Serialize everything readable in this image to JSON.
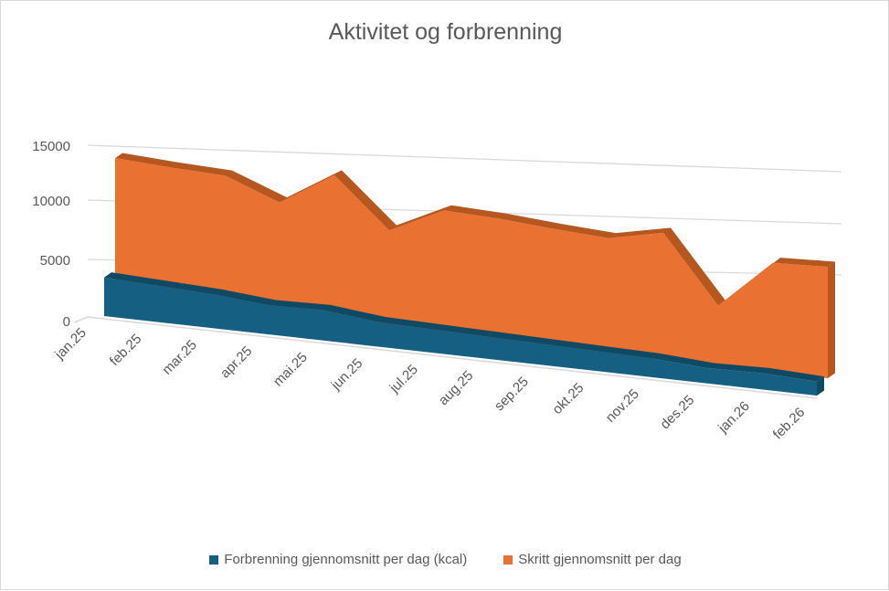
{
  "chart_data": {
    "type": "area",
    "subtype": "3d-area",
    "title": "Aktivitet og forbrenning",
    "categories": [
      "jan.25",
      "feb.25",
      "mar.25",
      "apr.25",
      "mai.25",
      "jun.25",
      "jul.25",
      "aug.25",
      "sep.25",
      "okt.25",
      "nov.25",
      "des.25",
      "jan.26",
      "feb.26"
    ],
    "yticks": [
      "0",
      "5000",
      "10000",
      "15000"
    ],
    "ylim": [
      0,
      15000
    ],
    "grid": true,
    "legend_position": "bottom",
    "series": [
      {
        "name": "Forbrenning gjennomsnitt per dag (kcal)",
        "color": "#156082",
        "values": [
          3300,
          3100,
          2900,
          2500,
          2600,
          2100,
          2000,
          1900,
          1800,
          1700,
          1600,
          1300,
          1400,
          1200
        ]
      },
      {
        "name": "Skritt gjennomsnitt per dag",
        "color": "#E97132",
        "values": [
          13500,
          13200,
          13000,
          11000,
          14200,
          9500,
          12000,
          11800,
          11400,
          11100,
          12200,
          5800,
          10500,
          10700
        ]
      }
    ]
  }
}
